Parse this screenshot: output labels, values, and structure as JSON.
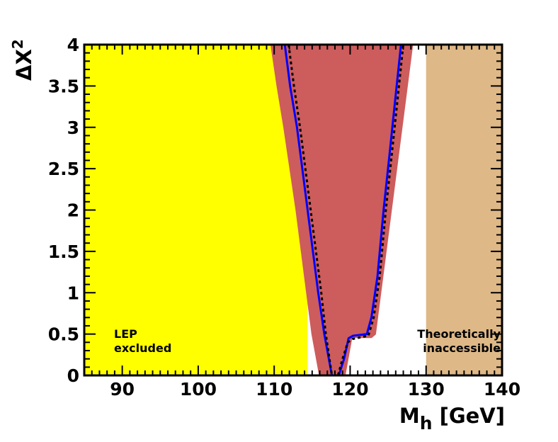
{
  "chart_data": {
    "type": "line",
    "title": "",
    "xlabel": "M_h [GeV]",
    "xlabel_main": "M",
    "xlabel_sub": "h",
    "xlabel_unit": "[GeV]",
    "ylabel": "ΔΧ²",
    "ylabel_main": "ΔΧ",
    "ylabel_sup": "2",
    "xlim": [
      85,
      140
    ],
    "ylim": [
      0,
      4
    ],
    "x_ticks": [
      90,
      100,
      110,
      120,
      130,
      140
    ],
    "x_tick_labels": [
      "90",
      "100",
      "110",
      "120",
      "130",
      "140"
    ],
    "y_ticks": [
      0,
      0.5,
      1,
      1.5,
      2,
      2.5,
      3,
      3.5,
      4
    ],
    "y_tick_labels": [
      "0",
      "0.5",
      "1",
      "1.5",
      "2",
      "2.5",
      "3",
      "3.5",
      "4"
    ],
    "grid": false,
    "regions": [
      {
        "name": "LEP excluded",
        "x_from": 85,
        "x_to": 114.4,
        "color": "#ffff00",
        "label_lines": [
          "LEP",
          "excluded"
        ]
      },
      {
        "name": "Theoretically inaccessible",
        "x_from": 130,
        "x_to": 140,
        "color": "#deb887",
        "label_lines": [
          "Theoretically",
          "inaccessible"
        ]
      }
    ],
    "band": {
      "name": "theory uncertainty band",
      "color": "#cd5c5c",
      "left_edge": [
        [
          109.6,
          4
        ],
        [
          110.4,
          3.5
        ],
        [
          111.3,
          3
        ],
        [
          112.1,
          2.5
        ],
        [
          112.9,
          2
        ],
        [
          113.6,
          1.5
        ],
        [
          114.3,
          1
        ],
        [
          115,
          0.5
        ],
        [
          116,
          0
        ]
      ],
      "right_edge": [
        [
          128.2,
          4
        ],
        [
          127.5,
          3.5
        ],
        [
          126.8,
          3
        ],
        [
          126.1,
          2.5
        ],
        [
          125.4,
          2
        ],
        [
          124.7,
          1.5
        ],
        [
          124,
          1
        ],
        [
          123.3,
          0.5
        ],
        [
          122.8,
          0.46
        ],
        [
          120.2,
          0.46
        ],
        [
          119.3,
          0
        ]
      ]
    },
    "series": [
      {
        "name": "blue solid curve",
        "style": "solid",
        "color": "#0000ff",
        "x": [
          111.4,
          112.1,
          113,
          113.7,
          114.4,
          115.1,
          115.8,
          116.6,
          117.6,
          118.5,
          119.2,
          119.8,
          120.4,
          122.2,
          122.8,
          123.6,
          124.4,
          125.1,
          125.9,
          126.7
        ],
        "y": [
          4,
          3.5,
          3,
          2.5,
          2,
          1.5,
          1,
          0.5,
          0,
          0,
          0.2,
          0.45,
          0.48,
          0.5,
          0.7,
          1.2,
          2,
          2.6,
          3.3,
          4
        ]
      },
      {
        "name": "dotted curve",
        "style": "dotted",
        "color": "#000000",
        "x": [
          111.9,
          112.6,
          113.4,
          114.1,
          114.8,
          115.5,
          116.2,
          116.8,
          117.6,
          118.4,
          119,
          119.7,
          120.3,
          122.4,
          123.1,
          123.9,
          124.7,
          125.4,
          126.2,
          127
        ],
        "y": [
          4,
          3.5,
          3,
          2.5,
          2,
          1.5,
          1,
          0.5,
          0,
          0,
          0.2,
          0.4,
          0.44,
          0.48,
          0.7,
          1.2,
          2,
          2.6,
          3.3,
          4
        ]
      }
    ]
  }
}
